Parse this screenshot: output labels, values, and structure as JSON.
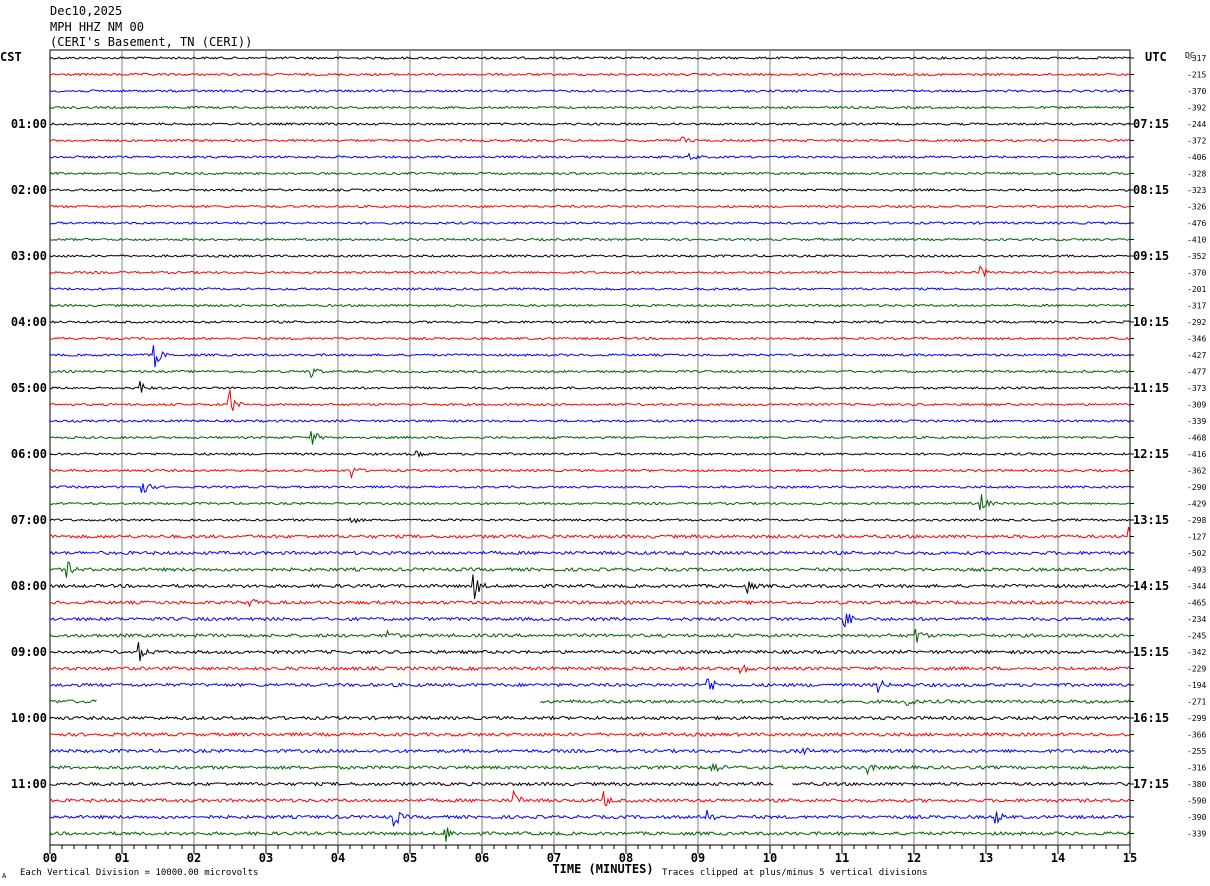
{
  "header": {
    "date": "Dec10,2025",
    "station": "MPH HHZ NM 00",
    "location": "(CERI's Basement, TN (CERI))"
  },
  "labels": {
    "left_tz": "CST",
    "right_tz": "UTC",
    "dc": "DC",
    "xaxis": "TIME (MINUTES)",
    "scale_note": "Each Vertical Division = 10000.00 microvolts",
    "clip_note": "Traces clipped at plus/minus 5 vertical divisions",
    "corner_mark": "A"
  },
  "colors": {
    "cycle": [
      "#000000",
      "#ff0000",
      "#0000ff",
      "#006400"
    ],
    "grid": "#808080"
  },
  "chart_data": {
    "type": "line",
    "xlabel": "TIME (MINUTES)",
    "xlim": [
      0,
      15
    ],
    "x_ticks": [
      "00",
      "01",
      "02",
      "03",
      "04",
      "05",
      "06",
      "07",
      "08",
      "09",
      "10",
      "11",
      "12",
      "13",
      "14",
      "15"
    ],
    "left_hour_labels": [
      "01:00",
      "02:00",
      "03:00",
      "04:00",
      "05:00",
      "06:00",
      "07:00",
      "08:00",
      "09:00",
      "10:00",
      "11:00"
    ],
    "right_hour_labels": [
      "07:15",
      "08:15",
      "09:15",
      "10:15",
      "11:15",
      "12:15",
      "13:15",
      "14:15",
      "15:15",
      "16:15",
      "17:15"
    ],
    "dc_offsets": [
      -317,
      -215,
      -370,
      -392,
      -244,
      -372,
      -406,
      -328,
      -323,
      -326,
      -476,
      -410,
      -352,
      -370,
      -201,
      -317,
      -292,
      -346,
      -427,
      -477,
      -373,
      -309,
      -339,
      -468,
      -416,
      -362,
      -290,
      -429,
      -298,
      -127,
      -502,
      -493,
      -344,
      -465,
      -234,
      -245,
      -342,
      -229,
      -194,
      -271,
      -299,
      -366,
      -255,
      -316,
      -380,
      -590,
      -390,
      -339
    ],
    "trace_count": 48,
    "events": [
      {
        "trace": 5,
        "minute": 8.8,
        "amp": 3
      },
      {
        "trace": 6,
        "minute": 8.9,
        "amp": 4
      },
      {
        "trace": 13,
        "minute": 12.95,
        "amp": 5
      },
      {
        "trace": 18,
        "minute": 1.45,
        "amp": 16
      },
      {
        "trace": 19,
        "minute": 3.65,
        "amp": 6
      },
      {
        "trace": 20,
        "minute": 1.25,
        "amp": 8
      },
      {
        "trace": 21,
        "minute": 2.5,
        "amp": 14
      },
      {
        "trace": 23,
        "minute": 3.65,
        "amp": 8
      },
      {
        "trace": 24,
        "minute": 5.1,
        "amp": 5
      },
      {
        "trace": 25,
        "minute": 4.2,
        "amp": 7
      },
      {
        "trace": 26,
        "minute": 1.3,
        "amp": 8
      },
      {
        "trace": 27,
        "minute": 12.95,
        "amp": 9
      },
      {
        "trace": 28,
        "minute": 4.2,
        "amp": 4
      },
      {
        "trace": 29,
        "minute": 15.0,
        "amp": 9
      },
      {
        "trace": 31,
        "minute": 0.25,
        "amp": 7
      },
      {
        "trace": 32,
        "minute": 5.9,
        "amp": 12
      },
      {
        "trace": 32,
        "minute": 9.7,
        "amp": 6
      },
      {
        "trace": 33,
        "minute": 2.8,
        "amp": 5
      },
      {
        "trace": 34,
        "minute": 11.05,
        "amp": 10
      },
      {
        "trace": 35,
        "minute": 4.7,
        "amp": 6
      },
      {
        "trace": 35,
        "minute": 12.05,
        "amp": 7
      },
      {
        "trace": 36,
        "minute": 1.25,
        "amp": 9
      },
      {
        "trace": 37,
        "minute": 9.6,
        "amp": 6
      },
      {
        "trace": 38,
        "minute": 9.15,
        "amp": 11
      },
      {
        "trace": 38,
        "minute": 11.5,
        "amp": 8
      },
      {
        "trace": 39,
        "minute": 11.9,
        "amp": 6
      },
      {
        "trace": 42,
        "minute": 10.45,
        "amp": 5
      },
      {
        "trace": 43,
        "minute": 9.2,
        "amp": 7
      },
      {
        "trace": 43,
        "minute": 11.35,
        "amp": 6
      },
      {
        "trace": 45,
        "minute": 6.45,
        "amp": 9
      },
      {
        "trace": 45,
        "minute": 7.7,
        "amp": 8
      },
      {
        "trace": 46,
        "minute": 4.8,
        "amp": 8
      },
      {
        "trace": 46,
        "minute": 9.15,
        "amp": 10
      },
      {
        "trace": 46,
        "minute": 13.15,
        "amp": 6
      },
      {
        "trace": 47,
        "minute": 5.5,
        "amp": 9
      }
    ],
    "gaps": [
      {
        "trace": 39,
        "from": 0.65,
        "to": 6.8
      },
      {
        "trace": 44,
        "from": 10.05,
        "to": 10.3
      }
    ]
  }
}
